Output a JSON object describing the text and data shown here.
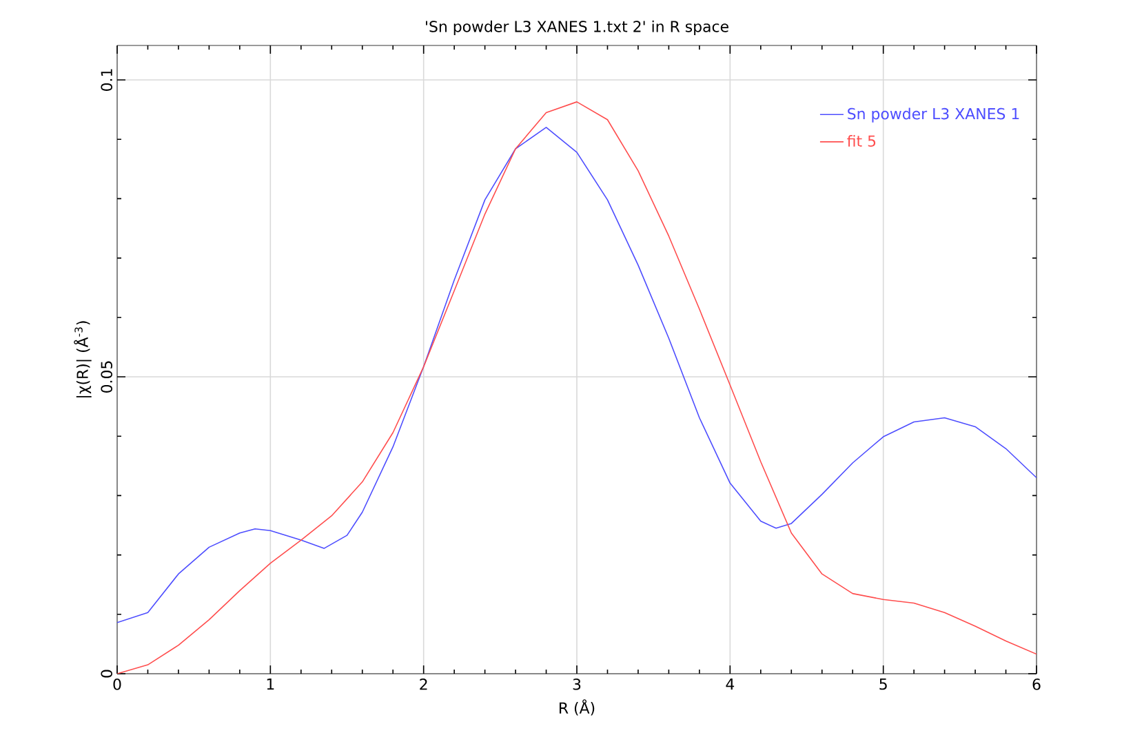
{
  "chart_data": {
    "type": "line",
    "title": "'Sn powder L3 XANES 1.txt 2' in R space",
    "xlabel": "R (Å)",
    "ylabel": "|χ(R)| (Å$^{-3}$)",
    "xlim": [
      0,
      6
    ],
    "ylim": [
      0,
      0.1058
    ],
    "xticks": [
      0,
      1,
      2,
      3,
      4,
      5,
      6
    ],
    "yticks": [
      0,
      0.05,
      0.1
    ],
    "grid": true,
    "legend": "top right",
    "series": [
      {
        "name": "Sn powder L3 XANES 1",
        "color": "#4d4dff",
        "x": [
          0,
          0.2,
          0.4,
          0.6,
          0.8,
          0.9,
          1.0,
          1.2,
          1.35,
          1.5,
          1.6,
          1.8,
          2.0,
          2.2,
          2.4,
          2.6,
          2.8,
          3.0,
          3.2,
          3.4,
          3.6,
          3.8,
          4.0,
          4.2,
          4.3,
          4.4,
          4.6,
          4.8,
          5.0,
          5.2,
          5.4,
          5.6,
          5.8,
          6.0
        ],
        "values": [
          0.0086,
          0.0103,
          0.0168,
          0.0213,
          0.0237,
          0.0244,
          0.0241,
          0.0225,
          0.0211,
          0.0233,
          0.0272,
          0.0382,
          0.0517,
          0.0663,
          0.0798,
          0.0884,
          0.092,
          0.0878,
          0.0798,
          0.0688,
          0.0565,
          0.0431,
          0.0321,
          0.0257,
          0.0245,
          0.0253,
          0.0302,
          0.0355,
          0.0399,
          0.0424,
          0.0431,
          0.0416,
          0.0379,
          0.033
        ]
      },
      {
        "name": "fit 5",
        "color": "#ff4d4d",
        "x": [
          0,
          0.2,
          0.4,
          0.6,
          0.8,
          1.0,
          1.2,
          1.4,
          1.6,
          1.8,
          2.0,
          2.2,
          2.4,
          2.6,
          2.8,
          3.0,
          3.2,
          3.4,
          3.6,
          3.8,
          4.0,
          4.2,
          4.4,
          4.6,
          4.8,
          5.0,
          5.2,
          5.4,
          5.6,
          5.8,
          6.0
        ],
        "values": [
          0,
          0.0015,
          0.0048,
          0.0091,
          0.014,
          0.0186,
          0.0225,
          0.0266,
          0.0323,
          0.0406,
          0.0517,
          0.0645,
          0.0774,
          0.0884,
          0.0945,
          0.0963,
          0.0933,
          0.0847,
          0.0737,
          0.0614,
          0.0486,
          0.0357,
          0.0237,
          0.0168,
          0.0135,
          0.0125,
          0.0119,
          0.0103,
          0.008,
          0.0055,
          0.0033
        ]
      }
    ],
    "marker": "none",
    "line_style": "solid"
  }
}
